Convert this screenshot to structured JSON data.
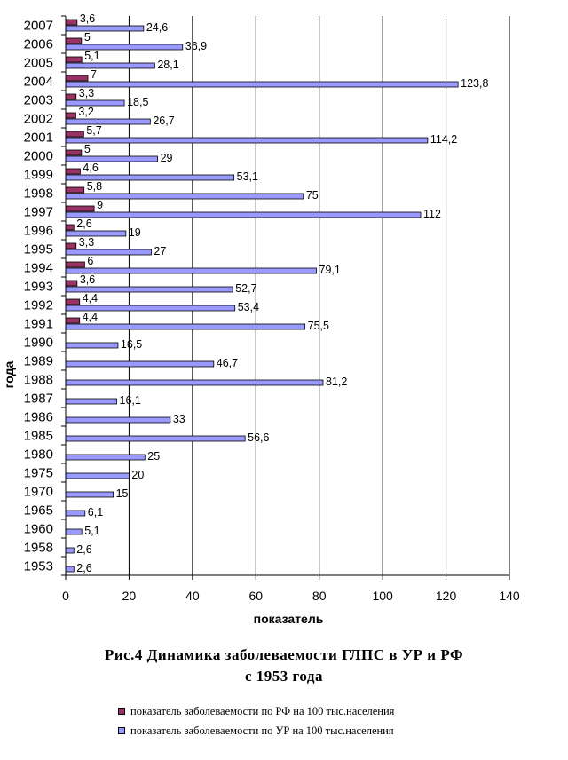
{
  "chart_data": {
    "type": "bar",
    "orientation": "horizontal",
    "categories": [
      "2007",
      "2006",
      "2005",
      "2004",
      "2003",
      "2002",
      "2001",
      "2000",
      "1999",
      "1998",
      "1997",
      "1996",
      "1995",
      "1994",
      "1993",
      "1992",
      "1991",
      "1990",
      "1989",
      "1988",
      "1987",
      "1986",
      "1985",
      "1980",
      "1975",
      "1970",
      "1965",
      "1960",
      "1958",
      "1953"
    ],
    "series": [
      {
        "name": "показатель заболеваемости по РФ на 100 тыс.населения",
        "color": "#993366",
        "values": [
          3.6,
          5,
          5.1,
          7,
          3.3,
          3.2,
          5.7,
          5,
          4.6,
          5.8,
          9,
          2.6,
          3.3,
          6,
          3.6,
          4.4,
          4.4,
          null,
          null,
          null,
          null,
          null,
          null,
          null,
          null,
          null,
          null,
          null,
          null,
          null
        ],
        "labels": [
          "3,6",
          "5",
          "5,1",
          "7",
          "3,3",
          "3,2",
          "5,7",
          "5",
          "4,6",
          "5,8",
          "9",
          "2,6",
          "3,3",
          "6",
          "3,6",
          "4,4",
          "4,4",
          "",
          "",
          "",
          "",
          "",
          "",
          "",
          "",
          "",
          "",
          "",
          "",
          ""
        ]
      },
      {
        "name": "показатель заболеваемости по УР на 100 тыс.населения",
        "color": "#9999ff",
        "values": [
          24.6,
          36.9,
          28.1,
          123.8,
          18.5,
          26.7,
          114.2,
          29,
          53.1,
          75,
          112,
          19,
          27,
          79.1,
          52.7,
          53.4,
          75.5,
          16.5,
          46.7,
          81.2,
          16.1,
          33,
          56.6,
          25,
          20,
          15,
          6.1,
          5.1,
          2.6,
          2.6
        ],
        "labels": [
          "24,6",
          "36,9",
          "28,1",
          "123,8",
          "18,5",
          "26,7",
          "114,2",
          "29",
          "53,1",
          "75",
          "112",
          "19",
          "27",
          "79,1",
          "52,7",
          "53,4",
          "75,5",
          "16,5",
          "46,7",
          "81,2",
          "16,1",
          "33",
          "56,6",
          "25",
          "20",
          "15",
          "6,1",
          "5,1",
          "2,6",
          "2,6"
        ]
      }
    ],
    "xlim": [
      0,
      140
    ],
    "xticks": [
      0,
      20,
      40,
      60,
      80,
      100,
      120,
      140
    ],
    "xlabel": "показатель",
    "ylabel": "года",
    "grid": "vertical",
    "legend_position": "bottom"
  },
  "caption": {
    "line1": "Рис.4 Динамика заболеваемости ГЛПС в УР и РФ",
    "line2": "с 1953 года"
  }
}
